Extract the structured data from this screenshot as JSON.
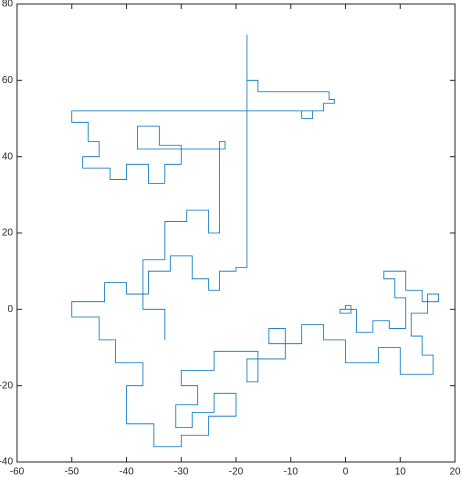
{
  "chart_data": {
    "type": "line",
    "x": [
      0,
      0,
      1,
      1,
      -1,
      -1,
      2,
      2,
      5,
      5,
      8,
      8,
      11,
      11,
      9,
      9,
      7,
      7,
      11,
      11,
      14,
      14,
      17,
      17,
      15,
      15,
      12,
      12,
      14,
      14,
      16,
      16,
      10,
      10,
      6,
      6,
      0,
      0,
      -4,
      -4,
      -8,
      -8,
      -14,
      -14,
      -11,
      -11,
      -18,
      -18,
      -16,
      -16,
      -24,
      -24,
      -30,
      -30,
      -27,
      -27,
      -31,
      -31,
      -28,
      -28,
      -24,
      -24,
      -20,
      -20,
      -25,
      -25,
      -30,
      -30,
      -35,
      -35,
      -40,
      -40,
      -37,
      -37,
      -42,
      -42,
      -45,
      -45,
      -50,
      -50,
      -44,
      -44,
      -40,
      -40,
      -36,
      -36,
      -32,
      -32,
      -28,
      -28,
      -25,
      -25,
      -23,
      -23,
      -20,
      -20,
      -18,
      -18,
      -18,
      -16,
      -16,
      -3,
      -3,
      -2,
      -2,
      -4,
      -4,
      -8,
      -8,
      -6,
      -6,
      -50,
      -50,
      -47,
      -47,
      -45,
      -45,
      -48,
      -48,
      -43,
      -43,
      -40,
      -40,
      -36,
      -36,
      -33,
      -33,
      -30,
      -30,
      -34,
      -34,
      -38,
      -38,
      -22,
      -22,
      -23,
      -23,
      -25,
      -25,
      -29,
      -29,
      -33,
      -33,
      -37,
      -37,
      -33,
      -33
    ],
    "y": [
      0,
      1,
      1,
      -1,
      -1,
      0,
      0,
      -6,
      -6,
      -3,
      -3,
      -5,
      -5,
      3,
      3,
      8,
      8,
      10,
      10,
      5,
      5,
      2,
      2,
      4,
      4,
      -1,
      -1,
      -7,
      -7,
      -12,
      -12,
      -17,
      -17,
      -10,
      -10,
      -14,
      -14,
      -8,
      -8,
      -4,
      -4,
      -9,
      -9,
      -5,
      -5,
      -13,
      -13,
      -19,
      -19,
      -11,
      -11,
      -16,
      -16,
      -20,
      -20,
      -25,
      -25,
      -31,
      -31,
      -27,
      -27,
      -22,
      -22,
      -28,
      -28,
      -33,
      -33,
      -36,
      -36,
      -30,
      -30,
      -20,
      -20,
      -14,
      -14,
      -8,
      -8,
      -2,
      -2,
      2,
      2,
      7,
      7,
      4,
      4,
      10,
      10,
      14,
      14,
      8,
      8,
      5,
      5,
      10,
      10,
      11,
      11,
      72,
      60,
      60,
      57,
      57,
      55,
      55,
      54,
      54,
      52,
      52,
      50,
      50,
      52,
      52,
      49,
      49,
      44,
      44,
      40,
      40,
      37,
      37,
      34,
      34,
      38,
      38,
      33,
      33,
      38,
      38,
      43,
      43,
      48,
      48,
      42,
      42,
      44,
      44,
      20,
      20,
      26,
      26,
      23,
      23,
      13,
      13,
      0,
      0,
      -8
    ],
    "color": "#0072bd",
    "xlim": [
      -60,
      20
    ],
    "xticks": [
      -60,
      -50,
      -40,
      -30,
      -20,
      -10,
      0,
      10,
      20
    ],
    "ylim": [
      -40,
      80
    ],
    "yticks": [
      -40,
      -20,
      0,
      20,
      40,
      60,
      80
    ]
  }
}
